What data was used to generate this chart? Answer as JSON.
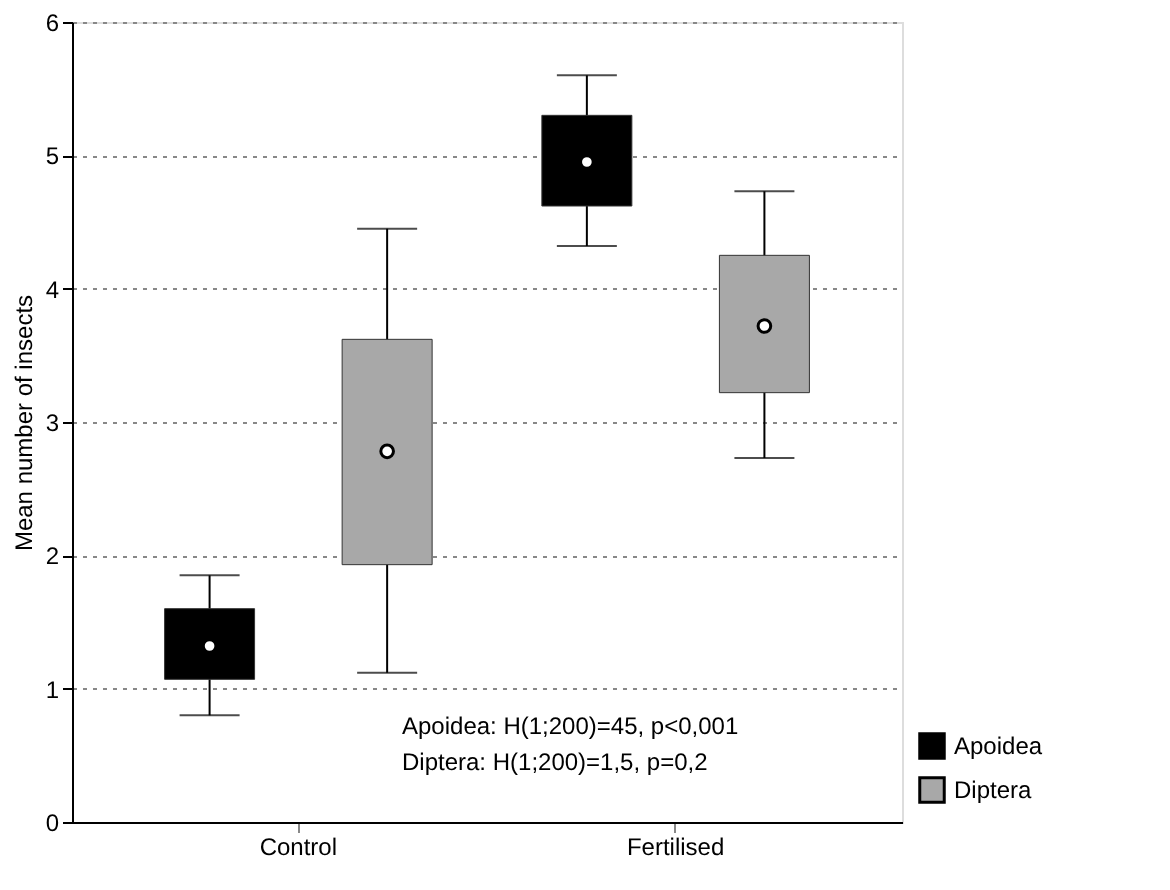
{
  "chart_data": {
    "type": "box",
    "ylabel": "Mean number of insects",
    "categories": [
      "Control",
      "Fertilised"
    ],
    "series": [
      {
        "name": "Apoidea",
        "color": "#000000",
        "boxes": [
          {
            "low": 0.8,
            "q1": 1.07,
            "median": 1.32,
            "q3": 1.6,
            "high": 1.85
          },
          {
            "low": 4.32,
            "q1": 4.62,
            "median": 4.95,
            "q3": 5.3,
            "high": 5.6
          }
        ]
      },
      {
        "name": "Diptera",
        "color": "#a8a8a8",
        "boxes": [
          {
            "low": 1.12,
            "q1": 1.93,
            "median": 2.78,
            "q3": 3.62,
            "high": 4.45
          },
          {
            "low": 2.73,
            "q1": 3.22,
            "median": 3.72,
            "q3": 4.25,
            "high": 4.73
          }
        ]
      }
    ],
    "ylim": [
      0,
      6
    ],
    "yticks": [
      0,
      1,
      2,
      3,
      4,
      5,
      6
    ],
    "grid": "y",
    "legend": "bottom right",
    "annotations": [
      "Apoidea: H(1;200)=45, p<0,001",
      "Diptera:  H(1;200)=1,5, p=0,2"
    ]
  }
}
